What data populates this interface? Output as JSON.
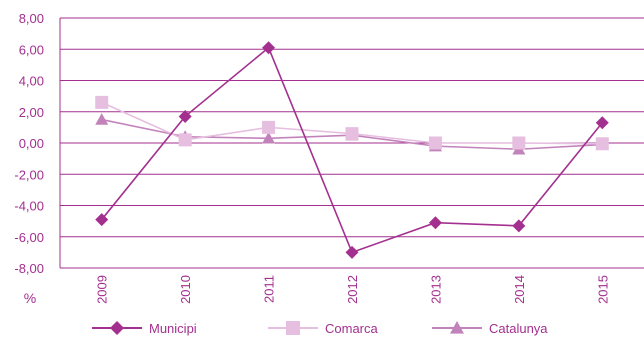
{
  "chart_data": {
    "type": "line",
    "categories": [
      "2009",
      "2010",
      "2011",
      "2012",
      "2013",
      "2014",
      "2015"
    ],
    "y_ticks": [
      "8,00",
      "6,00",
      "4,00",
      "2,00",
      "0,00",
      "-2,00",
      "-4,00",
      "-6,00",
      "-8,00"
    ],
    "y_tick_values": [
      8,
      6,
      4,
      2,
      0,
      -2,
      -4,
      -6,
      -8
    ],
    "ylim": [
      -8,
      8
    ],
    "ylabel": "%",
    "grid": "horizontal",
    "legend_position": "bottom",
    "series": [
      {
        "name": "Municipi",
        "color": "#a3308f",
        "marker": "diamond",
        "values": [
          -4.9,
          1.7,
          6.1,
          -7.0,
          -5.1,
          -5.3,
          1.3
        ]
      },
      {
        "name": "Comarca",
        "color": "#e6bedf",
        "marker": "square",
        "values": [
          2.6,
          0.2,
          1.0,
          0.6,
          0.0,
          0.0,
          -0.05
        ]
      },
      {
        "name": "Catalunya",
        "color": "#c283bb",
        "marker": "triangle",
        "values": [
          1.5,
          0.4,
          0.3,
          0.5,
          -0.2,
          -0.4,
          -0.1
        ]
      }
    ]
  }
}
